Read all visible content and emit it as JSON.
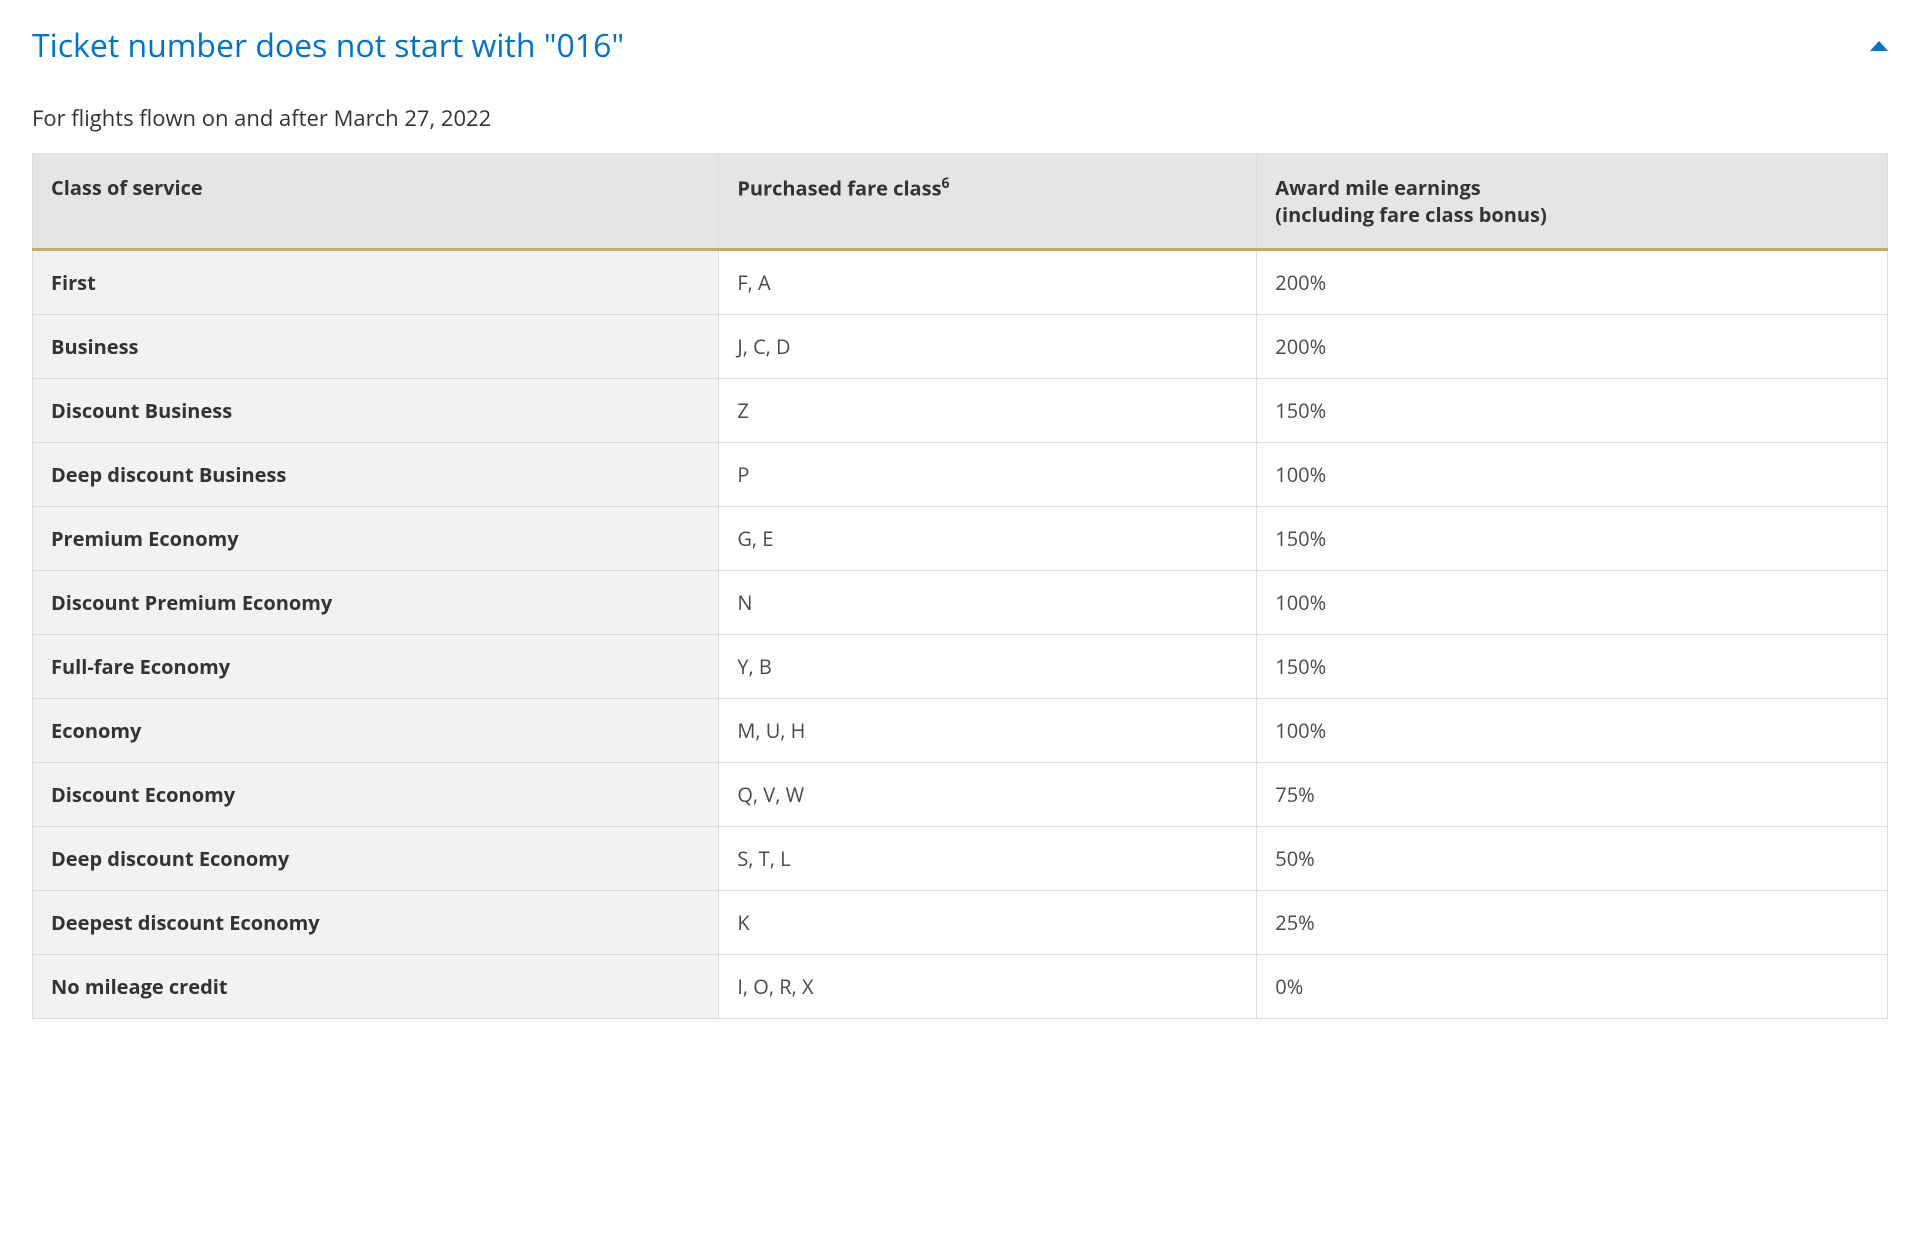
{
  "accordion": {
    "title": "Ticket number does not start with \"016\"",
    "expanded": true
  },
  "subtitle": "For flights flown on and after March 27, 2022",
  "table": {
    "columns": [
      {
        "label": "Class of service",
        "footnote": ""
      },
      {
        "label": "Purchased fare class",
        "footnote": "6"
      },
      {
        "label_line1": "Award mile earnings",
        "label_line2": "(including fare class bonus)",
        "footnote": ""
      }
    ],
    "rows": [
      {
        "class": "First",
        "fare": "F, A",
        "earn": "200%"
      },
      {
        "class": "Business",
        "fare": "J, C, D",
        "earn": "200%"
      },
      {
        "class": "Discount Business",
        "fare": "Z",
        "earn": "150%"
      },
      {
        "class": "Deep discount Business",
        "fare": "P",
        "earn": "100%"
      },
      {
        "class": "Premium Economy",
        "fare": "G, E",
        "earn": "150%"
      },
      {
        "class": "Discount Premium Economy",
        "fare": "N",
        "earn": "100%"
      },
      {
        "class": "Full-fare Economy",
        "fare": "Y, B",
        "earn": "150%"
      },
      {
        "class": "Economy",
        "fare": "M, U, H",
        "earn": "100%"
      },
      {
        "class": "Discount Economy",
        "fare": "Q, V, W",
        "earn": "75%"
      },
      {
        "class": "Deep discount Economy",
        "fare": "S, T, L",
        "earn": "50%"
      },
      {
        "class": "Deepest discount Economy",
        "fare": "K",
        "earn": "25%"
      },
      {
        "class": "No mileage credit",
        "fare": "I, O, R, X",
        "earn": "0%"
      }
    ]
  },
  "colors": {
    "link": "#0073cf",
    "header_bg": "#e5e5e5",
    "first_col_bg": "#f2f2f2",
    "border": "#dcdcdc",
    "accent_border": "#c9a96a",
    "text": "#333333",
    "cell_text": "#4a4a4a"
  }
}
